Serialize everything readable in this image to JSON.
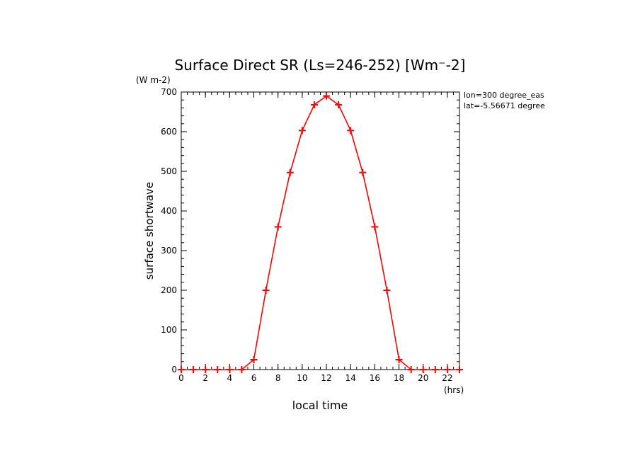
{
  "chart_data": {
    "type": "line",
    "title": "Surface Direct SR (Ls=246-252) [Wm⁻-2]",
    "y_unit_label": "(W m-2)",
    "x_unit_label": "(hrs)",
    "xlabel": "local time",
    "ylabel": "surface shortwave",
    "annotations": [
      "lon=300 degree_eas",
      "lat=-5.56671 degree"
    ],
    "xlim": [
      0,
      23
    ],
    "ylim": [
      0,
      700
    ],
    "x_ticks": [
      0,
      2,
      4,
      6,
      8,
      10,
      12,
      14,
      16,
      18,
      20,
      22
    ],
    "y_ticks": [
      0,
      100,
      200,
      300,
      400,
      500,
      600,
      700
    ],
    "series": [
      {
        "name": "surface shortwave",
        "color": "#ff0000",
        "x": [
          0,
          1,
          2,
          3,
          4,
          5,
          6,
          7,
          8,
          9,
          10,
          11,
          12,
          13,
          14,
          15,
          16,
          17,
          18,
          19,
          20,
          21,
          22,
          23
        ],
        "values": [
          0,
          0,
          0,
          0,
          0,
          0,
          25,
          200,
          360,
          497,
          603,
          668,
          690,
          668,
          603,
          497,
          360,
          200,
          25,
          0,
          0,
          0,
          0,
          0
        ]
      }
    ]
  }
}
